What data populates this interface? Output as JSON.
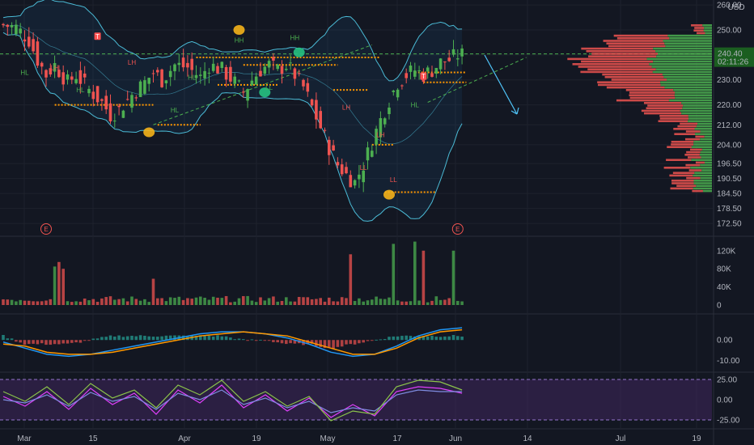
{
  "currency": "USD",
  "price": {
    "last": "240.40",
    "countdown": "02:11:26",
    "last_value": 240.4
  },
  "colors": {
    "background": "#131722",
    "up": "#26a69a",
    "up_bright": "#4caf50",
    "down": "#ef5350",
    "band": "#4bbbd6",
    "orange_level": "#ff9800",
    "green_dashed": "#4caf50",
    "macd_line": "#2196f3",
    "signal_line": "#ff9800",
    "rsi_fill": "#4a2a6b",
    "rsi_a": "#e040fb",
    "rsi_b": "#7e8ce0",
    "rsi_c": "#8bc34a",
    "arrow": "#4fc3f7",
    "marker_yellow": "#f5b21a",
    "marker_green": "#26c281"
  },
  "chart_data": [
    {
      "id": "price",
      "type": "candlestick",
      "y_ticks": [
        "260.00",
        "250.00",
        "240.00",
        "230.00",
        "220.00",
        "212.00",
        "204.00",
        "196.50",
        "190.50",
        "184.50",
        "178.50",
        "172.50"
      ],
      "ylim": [
        168,
        262
      ],
      "x_ticks": [
        "Mar",
        "15",
        "Apr",
        "19",
        "May",
        "17",
        "Jun",
        "14",
        "Jul",
        "19"
      ],
      "last_price": 240.4,
      "resistance_level": 240.4,
      "volume_profile": true,
      "bollinger_bands": true,
      "close_path": [
        [
          0,
          252
        ],
        [
          3,
          251
        ],
        [
          6,
          246
        ],
        [
          8,
          238
        ],
        [
          10,
          232
        ],
        [
          12,
          236
        ],
        [
          15,
          229
        ],
        [
          17,
          232
        ],
        [
          20,
          226
        ],
        [
          23,
          221
        ],
        [
          25,
          216
        ],
        [
          27,
          218
        ],
        [
          30,
          224
        ],
        [
          33,
          229
        ],
        [
          35,
          233
        ],
        [
          37,
          230
        ],
        [
          40,
          236
        ],
        [
          43,
          235
        ],
        [
          46,
          231
        ],
        [
          48,
          236
        ],
        [
          51,
          234
        ],
        [
          54,
          229
        ],
        [
          56,
          225
        ],
        [
          58,
          230
        ],
        [
          60,
          234
        ],
        [
          62,
          236
        ],
        [
          64,
          234
        ],
        [
          66,
          236
        ],
        [
          68,
          232
        ],
        [
          70,
          227
        ],
        [
          72,
          219
        ],
        [
          74,
          211
        ],
        [
          76,
          203
        ],
        [
          78,
          196
        ],
        [
          80,
          192
        ],
        [
          82,
          189
        ],
        [
          84,
          196
        ],
        [
          86,
          205
        ],
        [
          88,
          214
        ],
        [
          90,
          222
        ],
        [
          92,
          229
        ],
        [
          94,
          232
        ],
        [
          96,
          234
        ],
        [
          98,
          232
        ],
        [
          100,
          234
        ],
        [
          102,
          237
        ],
        [
          104,
          238
        ],
        [
          106,
          240
        ]
      ],
      "labels": [
        {
          "text": "HL",
          "tone": "up"
        },
        {
          "text": "HL",
          "tone": "up"
        },
        {
          "text": "HL",
          "tone": "up"
        },
        {
          "text": "HL",
          "tone": "up"
        },
        {
          "text": "HH",
          "tone": "up"
        },
        {
          "text": "HH",
          "tone": "up"
        },
        {
          "text": "LL",
          "tone": "up"
        },
        {
          "text": "HL",
          "tone": "up"
        },
        {
          "text": "LH",
          "tone": "down"
        },
        {
          "text": "LH",
          "tone": "down"
        },
        {
          "text": "LH",
          "tone": "down"
        },
        {
          "text": "LL",
          "tone": "down"
        },
        {
          "text": "LH",
          "tone": "down"
        },
        {
          "text": "LL",
          "tone": "down"
        }
      ],
      "flags": [
        "T",
        "T"
      ]
    },
    {
      "id": "volume",
      "type": "bar",
      "y_ticks": [
        "120K",
        "80K",
        "40K",
        "0"
      ],
      "ylim": [
        0,
        150
      ],
      "earnings_badge": "E",
      "spikes": [
        [
          12,
          85
        ],
        [
          13,
          95
        ],
        [
          14,
          80
        ],
        [
          35,
          58
        ],
        [
          81,
          112
        ],
        [
          91,
          135
        ],
        [
          96,
          140
        ],
        [
          98,
          120
        ],
        [
          105,
          120
        ]
      ]
    },
    {
      "id": "macd",
      "type": "line",
      "y_ticks": [
        "0.00",
        "-10.00"
      ],
      "ylim": [
        -15,
        12
      ],
      "series": [
        {
          "values": [
            -1,
            -4,
            -7,
            -8,
            -7,
            -5,
            -3,
            -1,
            1,
            3,
            4,
            4,
            3,
            1,
            -2,
            -6,
            -8,
            -7,
            -3,
            2,
            5,
            6
          ]
        },
        {
          "values": [
            -2,
            -3,
            -6,
            -7,
            -7,
            -6,
            -4,
            -2,
            0,
            2,
            3,
            4,
            3,
            2,
            -1,
            -4,
            -7,
            -7,
            -4,
            1,
            4,
            5
          ]
        }
      ]
    },
    {
      "id": "rsi",
      "type": "line",
      "y_ticks": [
        "25.00",
        "0.00",
        "-25.00"
      ],
      "ylim": [
        -32,
        32
      ],
      "series": [
        {
          "values": [
            4,
            -8,
            10,
            -12,
            14,
            -6,
            8,
            -18,
            12,
            -4,
            18,
            -10,
            6,
            -14,
            2,
            -22,
            -6,
            -20,
            10,
            16,
            14,
            8
          ]
        },
        {
          "values": [
            0,
            -4,
            6,
            -8,
            9,
            -2,
            4,
            -12,
            8,
            0,
            12,
            -6,
            2,
            -10,
            -2,
            -16,
            -10,
            -14,
            6,
            12,
            10,
            10
          ]
        },
        {
          "values": [
            10,
            -2,
            16,
            -6,
            20,
            2,
            12,
            -10,
            18,
            6,
            24,
            -2,
            10,
            -8,
            4,
            -26,
            -14,
            -18,
            16,
            24,
            22,
            12
          ]
        }
      ]
    }
  ]
}
